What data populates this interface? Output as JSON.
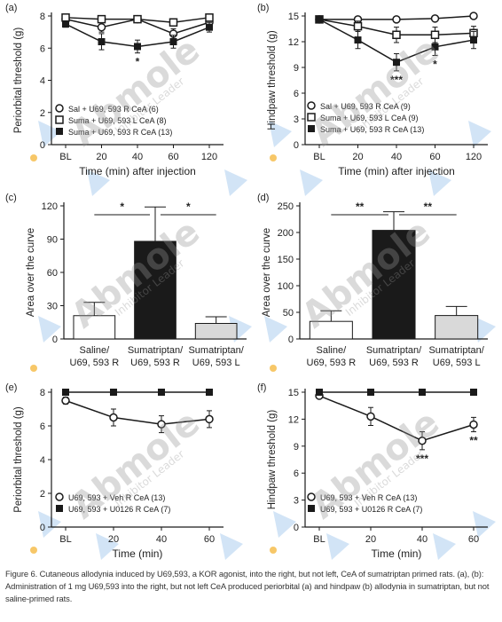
{
  "caption": "Figure 6. Cutaneous allodynia induced by U69,593, a KOR agonist, into the right, but not left, CeA of sumatriptan primed rats. (a), (b): Administration of 1 mg U69,593 into the right, but not left CeA produced periorbital (a) and hindpaw (b) allodynia in sumatriptan, but not saline-primed rats.",
  "watermark": {
    "brand": "Abmole",
    "tagline": "Inhibitor Leader"
  },
  "colors": {
    "black": "#1a1a1a",
    "gray_bar": "#d9d9d9",
    "white": "#ffffff",
    "watermark_blue": "#7fb2e5",
    "watermark_orange": "#f5b942"
  },
  "chart_data": [
    {
      "panel": "(a)",
      "type": "line",
      "categories": [
        "BL",
        "20",
        "40",
        "60",
        "120"
      ],
      "xlabel": "Time (min) after injection",
      "ylabel": "Periorbital threshold (g)",
      "ylim": [
        0,
        8
      ],
      "yticks": [
        0,
        2,
        4,
        6,
        8
      ],
      "series": [
        {
          "name": "Sal + U69, 593 R CeA (6)",
          "marker": "circle-open",
          "values": [
            7.8,
            7.3,
            7.8,
            6.9,
            7.6
          ],
          "err": [
            0.2,
            0.3,
            0.2,
            0.3,
            0.2
          ]
        },
        {
          "name": "Suma + U69, 593 L CeA (8)",
          "marker": "square-open",
          "values": [
            7.9,
            7.8,
            7.8,
            7.6,
            7.9
          ],
          "err": [
            0.1,
            0.2,
            0.1,
            0.2,
            0.1
          ]
        },
        {
          "name": "Suma + U69, 593 R CeA (13)",
          "marker": "square-filled",
          "values": [
            7.5,
            6.4,
            6.1,
            6.4,
            7.3
          ],
          "err": [
            0.2,
            0.5,
            0.4,
            0.4,
            0.3
          ]
        }
      ],
      "annotations": [
        {
          "x": "40",
          "text": "*"
        }
      ]
    },
    {
      "panel": "(b)",
      "type": "line",
      "categories": [
        "BL",
        "20",
        "40",
        "60",
        "120"
      ],
      "xlabel": "Time (min) after injection",
      "ylabel": "Hindpaw threshold (g)",
      "ylim": [
        0,
        15
      ],
      "yticks": [
        0,
        3,
        6,
        9,
        12,
        15
      ],
      "series": [
        {
          "name": "Sal + U69, 593 R CeA (9)",
          "marker": "circle-open",
          "values": [
            14.6,
            14.6,
            14.6,
            14.7,
            15.0
          ],
          "err": [
            0.2,
            0.3,
            0.3,
            0.3,
            0.1
          ]
        },
        {
          "name": "Suma + U69, 593 L CeA (9)",
          "marker": "square-open",
          "values": [
            14.6,
            13.8,
            12.8,
            12.8,
            13.0
          ],
          "err": [
            0.2,
            0.6,
            0.9,
            0.9,
            0.8
          ]
        },
        {
          "name": "Suma + U69, 593 R CeA (13)",
          "marker": "square-filled",
          "values": [
            14.6,
            12.2,
            9.6,
            11.4,
            12.2
          ],
          "err": [
            0.2,
            1.0,
            1.0,
            1.0,
            1.0
          ]
        }
      ],
      "annotations": [
        {
          "x": "40",
          "text": "***"
        },
        {
          "x": "60",
          "text": "*"
        }
      ]
    },
    {
      "panel": "(c)",
      "type": "bar",
      "categories": [
        "Saline/\nU69, 593 R",
        "Sumatriptan/\nU69, 593 R",
        "Sumatriptan/\nU69, 593 L"
      ],
      "ylabel": "Area over the curve",
      "ylim": [
        0,
        120
      ],
      "yticks": [
        0,
        30,
        60,
        90,
        120
      ],
      "values": [
        21,
        88,
        14
      ],
      "err": [
        12,
        31,
        6
      ],
      "fills": [
        "white",
        "black",
        "gray"
      ],
      "significance": [
        {
          "from": 0,
          "to": 1,
          "text": "*"
        },
        {
          "from": 1,
          "to": 2,
          "text": "*"
        }
      ]
    },
    {
      "panel": "(d)",
      "type": "bar",
      "categories": [
        "Saline/\nU69, 593 R",
        "Sumatriptan/\nU69, 593 R",
        "Sumatriptan/\nU69, 593 L"
      ],
      "ylabel": "Area over the curve",
      "ylim": [
        0,
        250
      ],
      "yticks": [
        0,
        50,
        100,
        150,
        200,
        250
      ],
      "values": [
        33,
        204,
        44
      ],
      "err": [
        20,
        35,
        17
      ],
      "fills": [
        "white",
        "black",
        "gray"
      ],
      "significance": [
        {
          "from": 0,
          "to": 1,
          "text": "**"
        },
        {
          "from": 1,
          "to": 2,
          "text": "**"
        }
      ]
    },
    {
      "panel": "(e)",
      "type": "line",
      "categories": [
        "BL",
        "20",
        "40",
        "60"
      ],
      "xlabel": "Time (min)",
      "ylabel": "Periorbital threshold (g)",
      "ylim": [
        0,
        8
      ],
      "yticks": [
        0,
        2,
        4,
        6,
        8
      ],
      "series": [
        {
          "name": "U69, 593 + Veh R CeA (13)",
          "marker": "circle-open",
          "values": [
            7.5,
            6.5,
            6.1,
            6.4
          ],
          "err": [
            0.2,
            0.5,
            0.5,
            0.5
          ]
        },
        {
          "name": "U69, 593 + U0126 R CeA (7)",
          "marker": "square-filled",
          "values": [
            8.0,
            8.0,
            8.0,
            8.0
          ],
          "err": [
            0,
            0,
            0,
            0
          ]
        }
      ],
      "annotations": []
    },
    {
      "panel": "(f)",
      "type": "line",
      "categories": [
        "BL",
        "20",
        "40",
        "60"
      ],
      "xlabel": "Time (min)",
      "ylabel": "Hindpaw threshold (g)",
      "ylim": [
        0,
        15
      ],
      "yticks": [
        0,
        3,
        6,
        9,
        12,
        15
      ],
      "series": [
        {
          "name": "U69, 593 + Veh R CeA (13)",
          "marker": "circle-open",
          "values": [
            14.6,
            12.3,
            9.6,
            11.4
          ],
          "err": [
            0.2,
            1.0,
            1.0,
            0.8
          ]
        },
        {
          "name": "U69, 593 + U0126 R CeA (7)",
          "marker": "square-filled",
          "values": [
            15.0,
            15.0,
            15.0,
            15.0
          ],
          "err": [
            0,
            0,
            0,
            0
          ]
        }
      ],
      "annotations": [
        {
          "x": "40",
          "text": "***"
        },
        {
          "x": "60",
          "text": "**"
        }
      ]
    }
  ]
}
